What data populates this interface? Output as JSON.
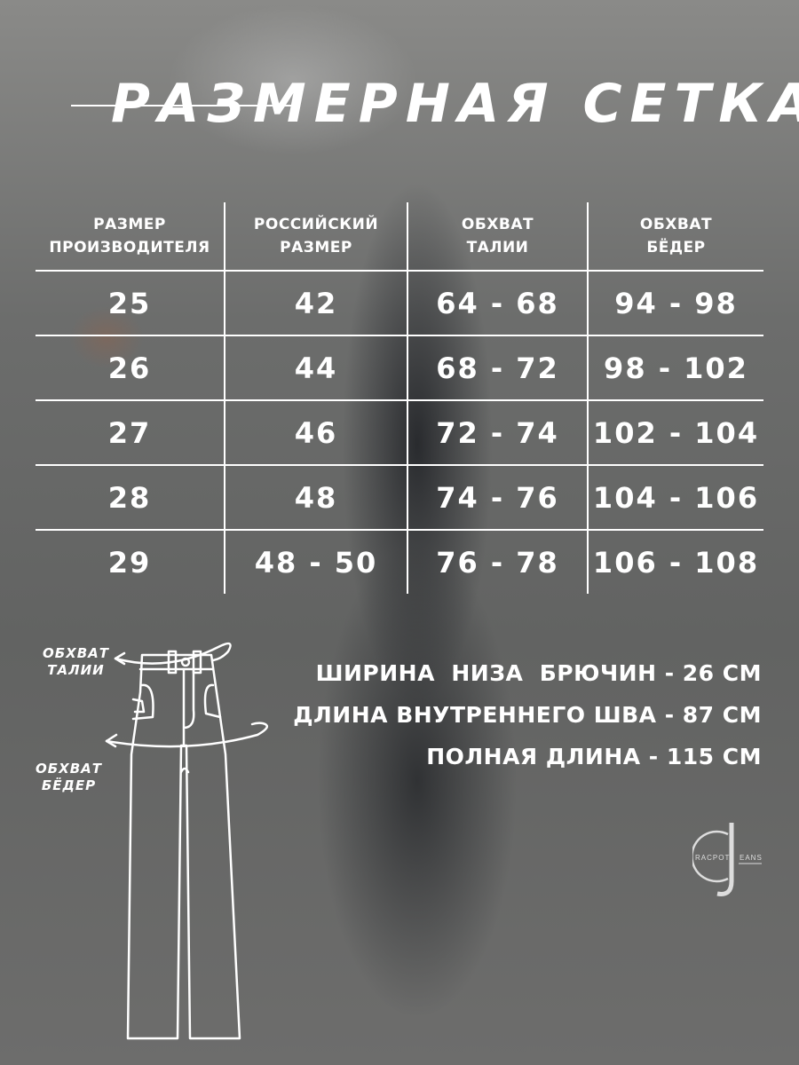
{
  "title": "РАЗМЕРНАЯ СЕТКА",
  "table": {
    "headers": [
      [
        "РАЗМЕР",
        "ПРОИЗВОДИТЕЛЯ"
      ],
      [
        "РОССИЙСКИЙ",
        "РАЗМЕР"
      ],
      [
        "ОБХВАТ",
        "ТАЛИИ"
      ],
      [
        "ОБХВАТ",
        "БЁДЕР"
      ]
    ],
    "rows": [
      [
        "25",
        "42",
        "64 - 68",
        "94 - 98"
      ],
      [
        "26",
        "44",
        "68 - 72",
        "98 - 102"
      ],
      [
        "27",
        "46",
        "72 - 74",
        "102 - 104"
      ],
      [
        "28",
        "48",
        "74 - 76",
        "104 - 106"
      ],
      [
        "29",
        "48 - 50",
        "76 - 78",
        "106 - 108"
      ]
    ]
  },
  "diagram": {
    "waist_label": [
      "ОБХВАТ",
      "ТАЛИИ"
    ],
    "hips_label": [
      "ОБХВАТ",
      "БЁДЕР"
    ]
  },
  "measurements": [
    "ШИРИНА  НИЗА  БРЮЧИН - 26 СМ",
    "ДЛИНА ВНУТРЕННЕГО ШВА - 87 СМ",
    "ПОЛНАЯ ДЛИНА - 115 СМ"
  ],
  "logo": {
    "letters": "CJ",
    "left": "RACPOT",
    "right": "EANS"
  }
}
